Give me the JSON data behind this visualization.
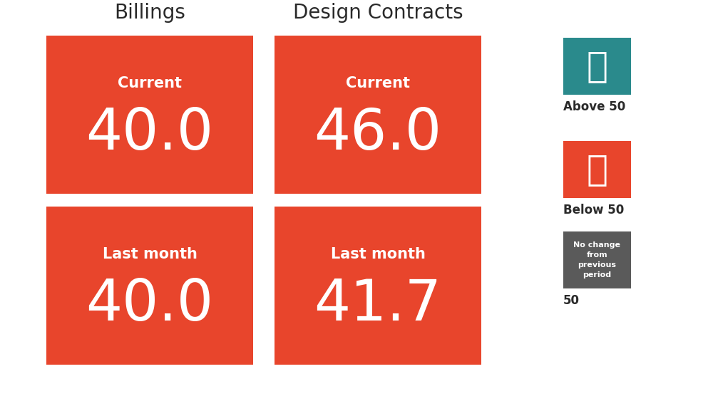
{
  "background_color": "#ffffff",
  "red_color": "#E8452C",
  "teal_color": "#2A8A8C",
  "gray_color": "#5A5A5A",
  "white_color": "#ffffff",
  "black_color": "#2a2a2a",
  "title_billings": "Billings",
  "title_design": "Design Contracts",
  "cell_top_left_label": "Current",
  "cell_top_left_value": "40.0",
  "cell_top_right_label": "Current",
  "cell_top_right_value": "46.0",
  "cell_bot_left_label": "Last month",
  "cell_bot_left_value": "40.0",
  "cell_bot_right_label": "Last month",
  "cell_bot_right_value": "41.7",
  "legend_above_label": "Above 50",
  "legend_below_label": "Below 50",
  "legend_no_change_label": "No change\nfrom\nprevious\nperiod",
  "legend_50_label": "50",
  "value_fontsize": 58,
  "label_fontsize": 15,
  "title_fontsize": 20,
  "legend_fontsize": 12,
  "legend_nc_fontsize": 8
}
